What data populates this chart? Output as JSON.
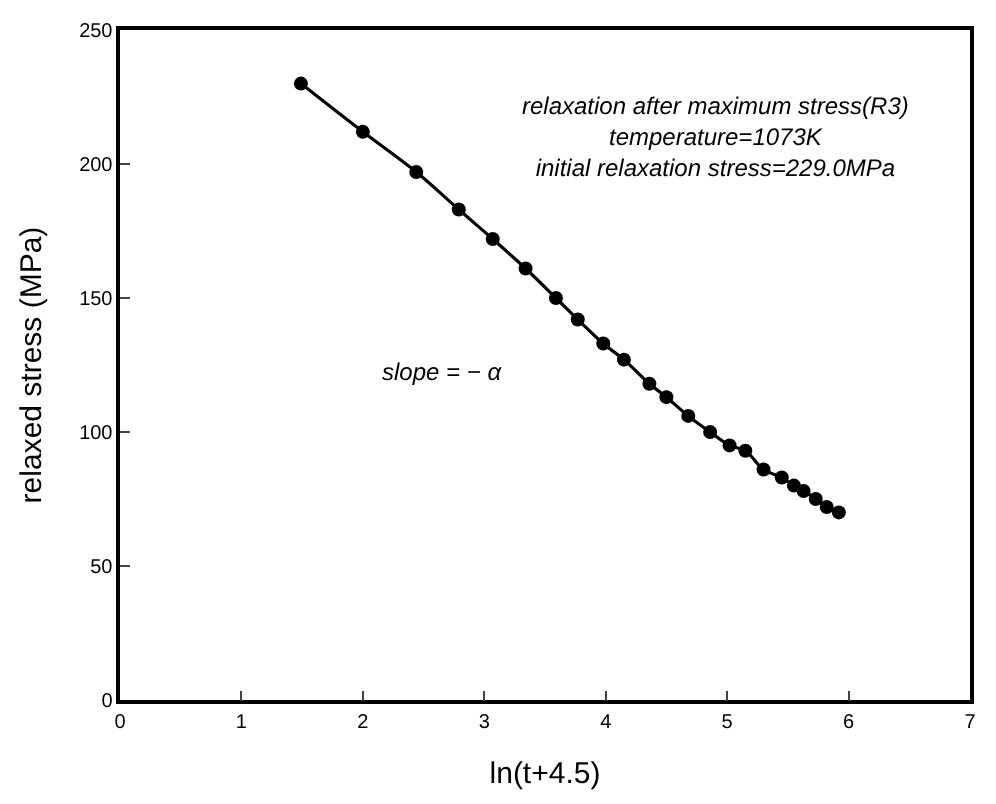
{
  "chart_data": {
    "type": "line",
    "xlabel": "ln(t+4.5)",
    "ylabel": "relaxed stress (MPa)",
    "x": [
      1.49,
      2.0,
      2.44,
      2.79,
      3.07,
      3.34,
      3.59,
      3.77,
      3.98,
      4.15,
      4.36,
      4.5,
      4.68,
      4.86,
      5.02,
      5.15,
      5.3,
      5.45,
      5.55,
      5.63,
      5.73,
      5.82,
      5.92
    ],
    "series": [
      {
        "color": "#000000",
        "values": [
          230,
          212,
          197,
          183,
          172,
          161,
          150,
          142,
          133,
          127,
          118,
          113,
          106,
          100,
          95,
          93,
          86,
          83,
          80,
          78,
          75,
          72,
          70
        ]
      }
    ],
    "xlim": [
      0,
      7
    ],
    "xticks": [
      0,
      1,
      2,
      3,
      4,
      5,
      6,
      7
    ],
    "ylim": [
      0,
      250
    ],
    "yticks": [
      0,
      50,
      100,
      150,
      200,
      250
    ],
    "legend": false,
    "marker": "circle",
    "line_style": "solid",
    "annotations": [
      "relaxation after maximum stress(R3)\ntemperature=1073K\ninitial relaxation stress=229.0MPa",
      "slope = − α"
    ]
  }
}
